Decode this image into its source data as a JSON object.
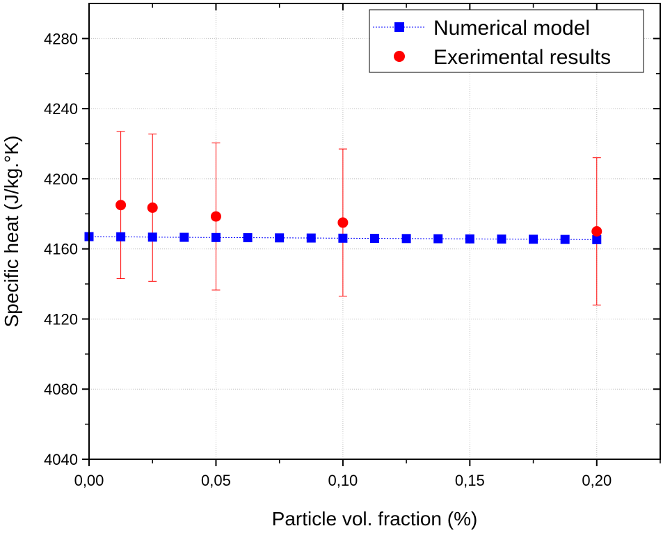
{
  "chart_data": {
    "type": "scatter",
    "title": "",
    "xlabel": "Particle vol. fraction (%)",
    "ylabel": "Specific heat (J/kg.°K)",
    "xlim": [
      0,
      0.225
    ],
    "ylim": [
      4040,
      4300
    ],
    "xticks": [
      0.0,
      0.05,
      0.1,
      0.15,
      0.2
    ],
    "xtick_labels": [
      "0,00",
      "0,05",
      "0,10",
      "0,15",
      "0,20"
    ],
    "yticks": [
      4040,
      4080,
      4120,
      4160,
      4200,
      4240,
      4280
    ],
    "ytick_labels": [
      "4040",
      "4080",
      "4120",
      "4160",
      "4200",
      "4240",
      "4280"
    ],
    "grid": true,
    "legend_position": "top-right",
    "series": [
      {
        "name": "Numerical model",
        "marker": "square",
        "line": "dotted",
        "color": "#0000ff",
        "x": [
          0.0,
          0.0125,
          0.025,
          0.0375,
          0.05,
          0.0625,
          0.075,
          0.0875,
          0.1,
          0.1125,
          0.125,
          0.1375,
          0.15,
          0.1625,
          0.175,
          0.1875,
          0.2
        ],
        "y": [
          4167,
          4166.9,
          4166.7,
          4166.6,
          4166.5,
          4166.4,
          4166.3,
          4166.2,
          4166.1,
          4166.0,
          4165.9,
          4165.8,
          4165.7,
          4165.6,
          4165.5,
          4165.4,
          4165.3
        ]
      },
      {
        "name": "Exerimental results",
        "marker": "circle",
        "line": "none",
        "color": "#ff0000",
        "x": [
          0.0125,
          0.025,
          0.05,
          0.1,
          0.2
        ],
        "y": [
          4185,
          4183.5,
          4178.5,
          4175,
          4170
        ],
        "error": [
          42,
          42,
          42,
          42,
          42
        ]
      }
    ]
  }
}
